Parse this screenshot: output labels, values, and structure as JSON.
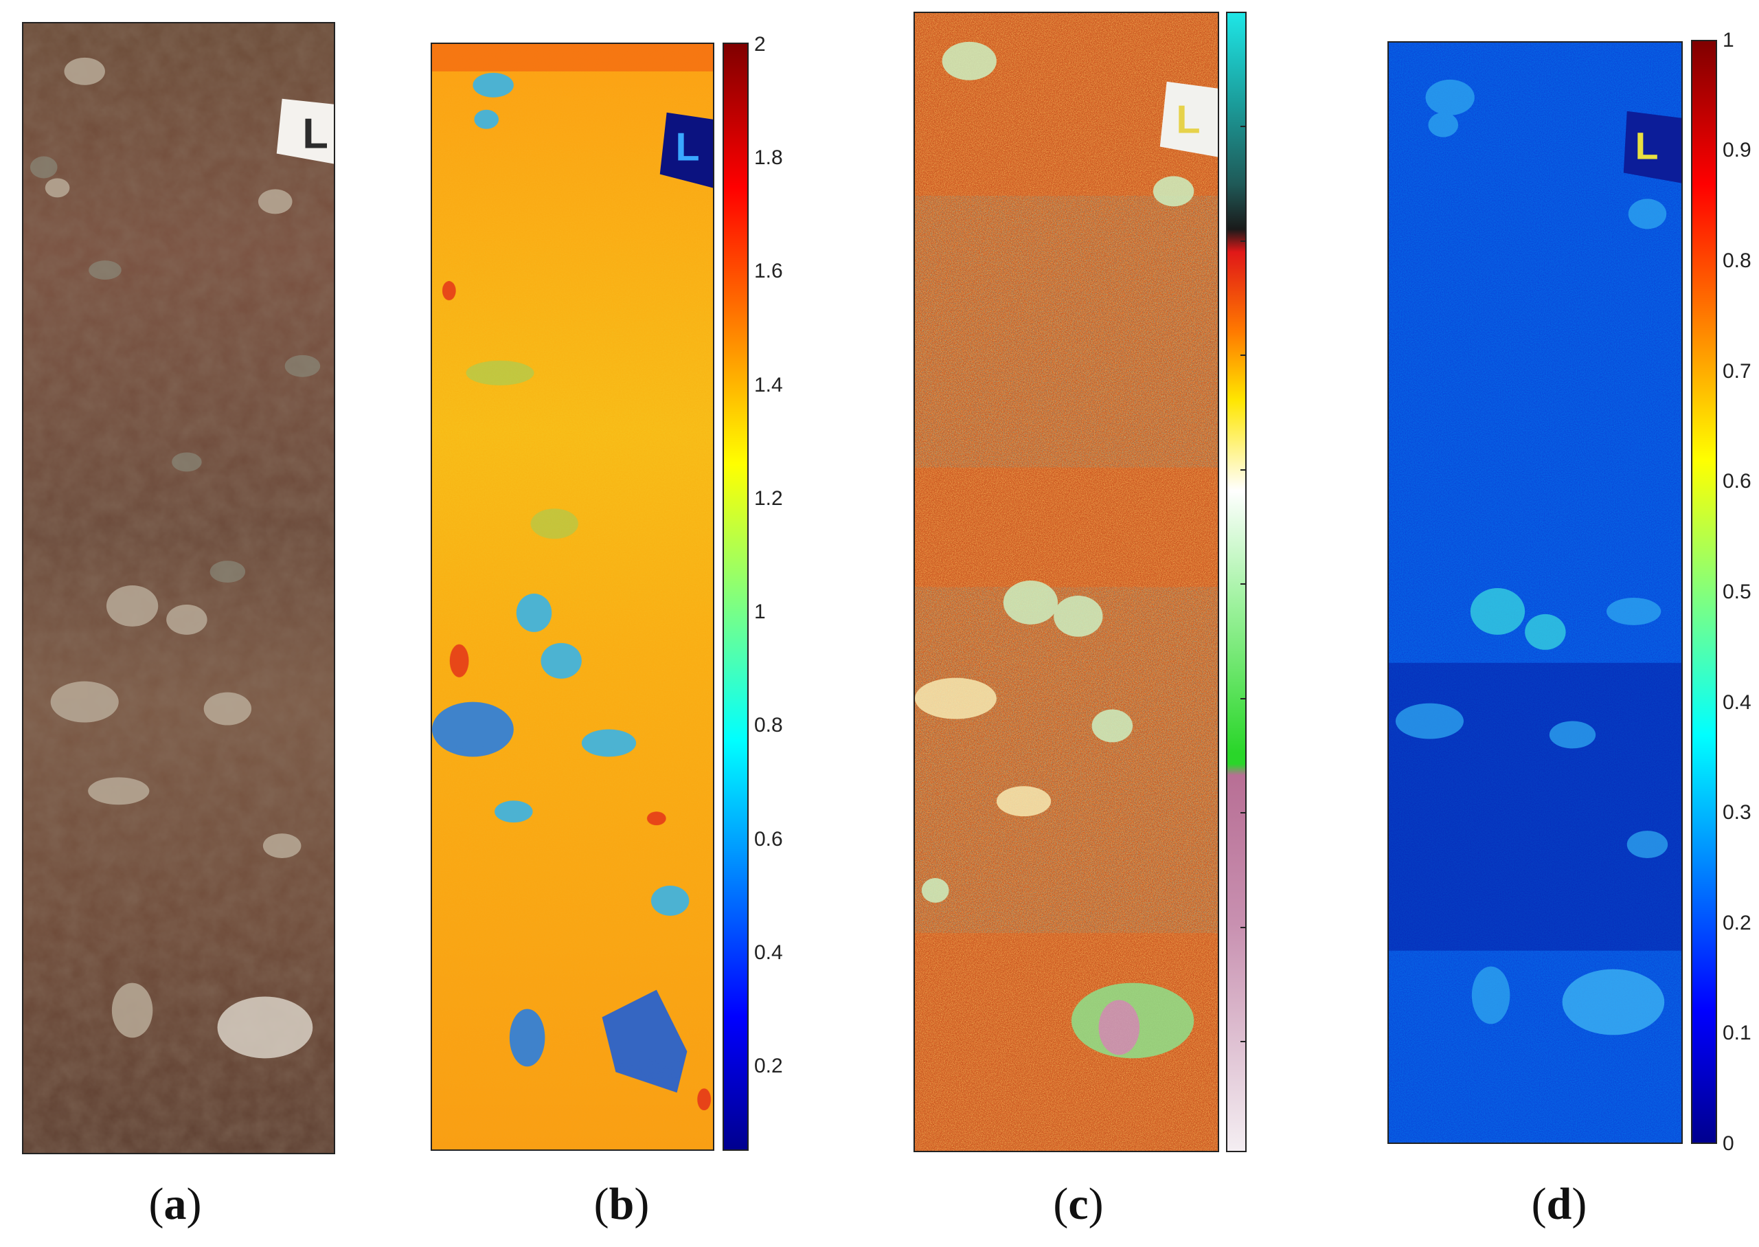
{
  "figure": {
    "panels": [
      {
        "id": "a",
        "caption_letter": "a",
        "kind": "rgb-photo"
      },
      {
        "id": "b",
        "caption_letter": "b",
        "kind": "index-map",
        "colormap": "jet",
        "colorbar": {
          "min": 0.05,
          "max": 2,
          "ticks": [
            "2",
            "1.8",
            "1.6",
            "1.4",
            "1.2",
            "1",
            "0.8",
            "0.6",
            "0.4",
            "0.2"
          ]
        }
      },
      {
        "id": "c",
        "caption_letter": "c",
        "kind": "classification-map",
        "colorbar": {
          "ticks": []
        },
        "colors": [
          "#1ee6e6",
          "#1f6e6a",
          "#1a1a1a",
          "#e01818",
          "#ff7a00",
          "#ffe600",
          "#ffffff",
          "#3dd93d",
          "#b86f95",
          "#f4eef2"
        ]
      },
      {
        "id": "d",
        "caption_letter": "d",
        "kind": "index-map",
        "colormap": "jet",
        "colorbar": {
          "min": 0,
          "max": 1,
          "ticks": [
            "1",
            "0.9",
            "0.8",
            "0.7",
            "0.6",
            "0.5",
            "0.4",
            "0.3",
            "0.2",
            "0.1",
            "0"
          ]
        }
      }
    ],
    "marker_letter": "L"
  }
}
